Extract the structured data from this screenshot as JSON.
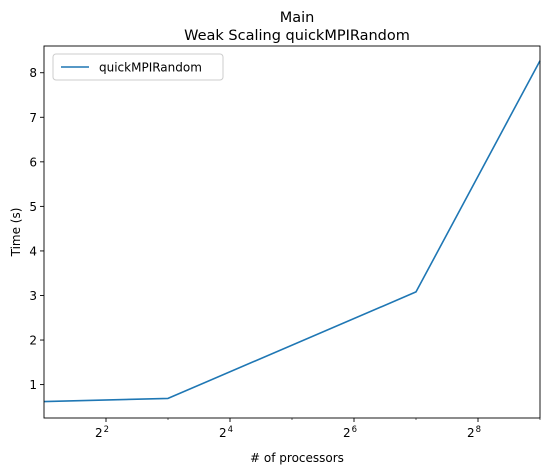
{
  "chart_data": {
    "type": "line",
    "title": "Main",
    "subtitle": "Weak Scaling quickMPIRandom",
    "xlabel": "# of processors",
    "ylabel": "Time (s)",
    "xscale": "log2",
    "xlim": [
      2,
      512
    ],
    "ylim": [
      0.25,
      8.6
    ],
    "x_ticks": [
      {
        "base": "2",
        "exp": "2",
        "value": 4
      },
      {
        "base": "2",
        "exp": "4",
        "value": 16
      },
      {
        "base": "2",
        "exp": "6",
        "value": 64
      },
      {
        "base": "2",
        "exp": "8",
        "value": 256
      }
    ],
    "y_ticks": [
      "1",
      "2",
      "3",
      "4",
      "5",
      "6",
      "7",
      "8"
    ],
    "legend_position": "top-left",
    "grid": false,
    "series": [
      {
        "name": "quickMPIRandom",
        "color": "#1f77b4",
        "x": [
          2,
          8,
          128,
          512
        ],
        "y": [
          0.62,
          0.69,
          3.08,
          8.27
        ]
      }
    ]
  }
}
